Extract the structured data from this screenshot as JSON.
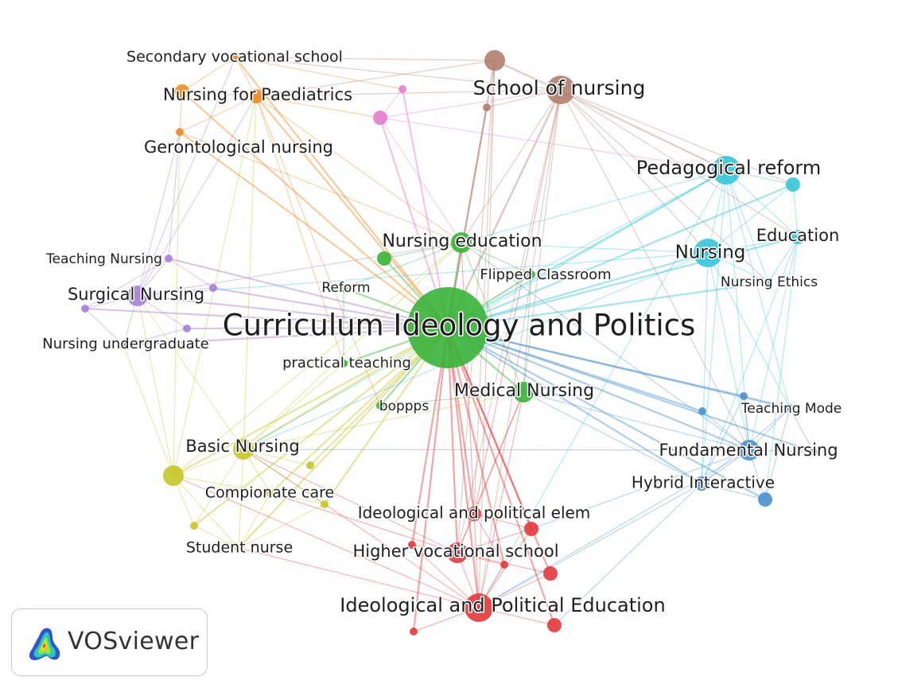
{
  "app": {
    "name": "VOSviewer"
  },
  "clusters": {
    "red": "#e3393c",
    "green": "#3ab33a",
    "blue": "#4a90cf",
    "yellow": "#c6c52a",
    "purple": "#a57fd6",
    "cyan": "#35c4d9",
    "orange": "#f08a24",
    "brown": "#b17e6e",
    "pink": "#e37dd2"
  },
  "nodes": [
    {
      "id": "cip",
      "label": "Curriculum Ideology and Politics",
      "cluster": "green",
      "size": 10,
      "show_label": true
    },
    {
      "id": "ne",
      "label": "Nursing education",
      "cluster": "green",
      "size": 3,
      "show_label": true
    },
    {
      "id": "mn",
      "label": "Medical Nursing",
      "cluster": "green",
      "size": 3,
      "show_label": true
    },
    {
      "id": "fc",
      "label": "Flipped Classroom",
      "cluster": "green",
      "size": 1,
      "show_label": true
    },
    {
      "id": "ref",
      "label": "Reform",
      "cluster": "green",
      "size": 1,
      "show_label": true
    },
    {
      "id": "pt",
      "label": "practical teaching",
      "cluster": "green",
      "size": 1,
      "show_label": true
    },
    {
      "id": "bop",
      "label": "boppps",
      "cluster": "green",
      "size": 1,
      "show_label": true
    },
    {
      "id": "g1",
      "label": "",
      "cluster": "green",
      "size": 2,
      "show_label": false
    },
    {
      "id": "sn",
      "label": "School of nursing",
      "cluster": "brown",
      "size": 4,
      "show_label": true
    },
    {
      "id": "b1",
      "label": "",
      "cluster": "brown",
      "size": 3,
      "show_label": false
    },
    {
      "id": "b2",
      "label": "",
      "cluster": "brown",
      "size": 1,
      "show_label": false
    },
    {
      "id": "p1",
      "label": "",
      "cluster": "pink",
      "size": 2,
      "show_label": false
    },
    {
      "id": "p2",
      "label": "",
      "cluster": "pink",
      "size": 1,
      "show_label": false
    },
    {
      "id": "svs",
      "label": "Secondary vocational school",
      "cluster": "orange",
      "size": 1,
      "show_label": true
    },
    {
      "id": "nfp",
      "label": "Nursing for Paediatrics",
      "cluster": "orange",
      "size": 2,
      "show_label": true
    },
    {
      "id": "o1",
      "label": "",
      "cluster": "orange",
      "size": 2,
      "show_label": false
    },
    {
      "id": "gn",
      "label": "Gerontological nursing",
      "cluster": "orange",
      "size": 1,
      "show_label": true
    },
    {
      "id": "pr",
      "label": "Pedagogical reform",
      "cluster": "cyan",
      "size": 4,
      "show_label": true
    },
    {
      "id": "c1",
      "label": "",
      "cluster": "cyan",
      "size": 2,
      "show_label": false
    },
    {
      "id": "edu",
      "label": "Education",
      "cluster": "cyan",
      "size": 2,
      "show_label": true
    },
    {
      "id": "nur",
      "label": "Nursing",
      "cluster": "cyan",
      "size": 4,
      "show_label": true
    },
    {
      "id": "neth",
      "label": "Nursing Ethics",
      "cluster": "cyan",
      "size": 1,
      "show_label": true
    },
    {
      "id": "tn",
      "label": "Teaching Nursing",
      "cluster": "purple",
      "size": 1,
      "show_label": true
    },
    {
      "id": "sgn",
      "label": "Surgical Nursing",
      "cluster": "purple",
      "size": 3,
      "show_label": true
    },
    {
      "id": "nug",
      "label": "Nursing undergraduate",
      "cluster": "purple",
      "size": 1,
      "show_label": true
    },
    {
      "id": "pu1",
      "label": "",
      "cluster": "purple",
      "size": 1,
      "show_label": false
    },
    {
      "id": "pu2",
      "label": "",
      "cluster": "purple",
      "size": 1,
      "show_label": false
    },
    {
      "id": "pu3",
      "label": "",
      "cluster": "purple",
      "size": 1,
      "show_label": false
    },
    {
      "id": "bn",
      "label": "Basic Nursing",
      "cluster": "yellow",
      "size": 3,
      "show_label": true
    },
    {
      "id": "y1",
      "label": "",
      "cluster": "yellow",
      "size": 3,
      "show_label": false
    },
    {
      "id": "cc",
      "label": "Compionate care",
      "cluster": "yellow",
      "size": 1,
      "show_label": true
    },
    {
      "id": "stn",
      "label": "Student nurse",
      "cluster": "yellow",
      "size": 1,
      "show_label": true
    },
    {
      "id": "y2",
      "label": "",
      "cluster": "yellow",
      "size": 1,
      "show_label": false
    },
    {
      "id": "y3",
      "label": "",
      "cluster": "yellow",
      "size": 1,
      "show_label": false
    },
    {
      "id": "y4",
      "label": "",
      "cluster": "yellow",
      "size": 1,
      "show_label": false
    },
    {
      "id": "tm",
      "label": "Teaching Mode",
      "cluster": "blue",
      "size": 1,
      "show_label": true
    },
    {
      "id": "fn",
      "label": "Fundamental Nursing",
      "cluster": "blue",
      "size": 3,
      "show_label": true
    },
    {
      "id": "hi",
      "label": "Hybrid Interactive",
      "cluster": "blue",
      "size": 2,
      "show_label": true
    },
    {
      "id": "bl1",
      "label": "",
      "cluster": "blue",
      "size": 1,
      "show_label": false
    },
    {
      "id": "bl2",
      "label": "",
      "cluster": "blue",
      "size": 1,
      "show_label": false
    },
    {
      "id": "bl3",
      "label": "",
      "cluster": "blue",
      "size": 2,
      "show_label": false
    },
    {
      "id": "bl4",
      "label": "",
      "cluster": "blue",
      "size": 1,
      "show_label": false
    },
    {
      "id": "ipe",
      "label": "Ideological and political elem",
      "cluster": "red",
      "size": 2,
      "show_label": true
    },
    {
      "id": "hvs",
      "label": "Higher vocational school",
      "cluster": "red",
      "size": 3,
      "show_label": true
    },
    {
      "id": "iped",
      "label": "Ideological and Political Education",
      "cluster": "red",
      "size": 4,
      "show_label": true
    },
    {
      "id": "r1",
      "label": "",
      "cluster": "red",
      "size": 2,
      "show_label": false
    },
    {
      "id": "r2",
      "label": "",
      "cluster": "red",
      "size": 1,
      "show_label": false
    },
    {
      "id": "r3",
      "label": "",
      "cluster": "red",
      "size": 2,
      "show_label": false
    },
    {
      "id": "r4",
      "label": "",
      "cluster": "red",
      "size": 2,
      "show_label": false
    },
    {
      "id": "r5",
      "label": "",
      "cluster": "red",
      "size": 1,
      "show_label": false
    },
    {
      "id": "r6",
      "label": "",
      "cluster": "red",
      "size": 1,
      "show_label": false
    }
  ]
}
